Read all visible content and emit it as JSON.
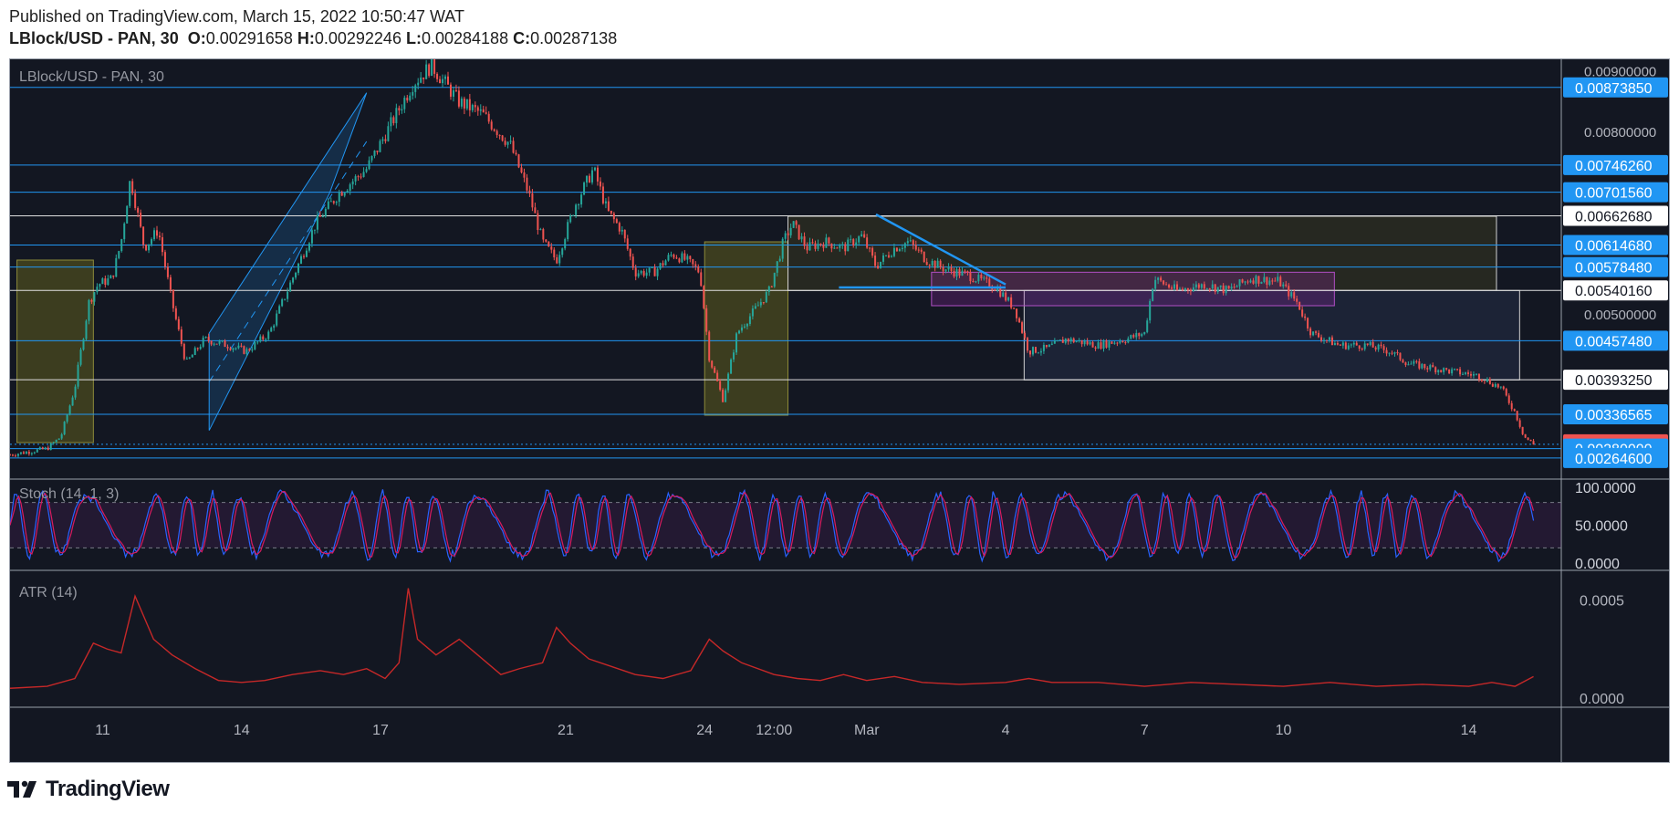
{
  "header": {
    "published": "Published on TradingView.com, March 15, 2022 10:50:47 WAT",
    "symbol": "LBlock/USD - PAN, 30",
    "o_label": "O:",
    "o_value": "0.00291658",
    "h_label": "H:",
    "h_value": "0.00292246",
    "l_label": "L:",
    "l_value": "0.00284188",
    "c_label": "C:",
    "c_value": "0.00287138"
  },
  "footer": {
    "brand": "TradingView"
  },
  "colors": {
    "background": "#131722",
    "up": "#26a69a",
    "down": "#ef5350",
    "hline": "#2196f3",
    "price_tag": "#2196f3",
    "last_price_tag": "#ef5350",
    "stoch_k": "#2962ff",
    "stoch_d": "#d81b60",
    "atr": "#c62828",
    "zone_yellow": "#5f5d1e",
    "zone_purple": "#9c27b0",
    "zone_navy": "#1e2538"
  },
  "chart_data": [
    {
      "type": "candlestick",
      "title": "LBlock/USD - PAN, 30",
      "ylim": [
        0.0023,
        0.0092
      ],
      "x_tick_labels": [
        "11",
        "14",
        "17",
        "21",
        "24",
        "12:00",
        "Mar",
        "4",
        "7",
        "10",
        "14"
      ],
      "x_tick_times": [
        1.5,
        4.5,
        7.5,
        11.5,
        14.5,
        16,
        18,
        21,
        24,
        27,
        31
      ],
      "x_range": [
        -0.5,
        33
      ],
      "y_tick_labels": [
        "0.00900000",
        "0.00800000",
        "0.00500000"
      ],
      "path": [
        [
          -0.5,
          0.0027
        ],
        [
          0.3,
          0.0028
        ],
        [
          0.6,
          0.003
        ],
        [
          0.9,
          0.0038
        ],
        [
          1.2,
          0.0052
        ],
        [
          1.4,
          0.0055
        ],
        [
          1.7,
          0.0056
        ],
        [
          1.9,
          0.0062
        ],
        [
          2.1,
          0.00725
        ],
        [
          2.4,
          0.0061
        ],
        [
          2.7,
          0.0064
        ],
        [
          3.0,
          0.0052
        ],
        [
          3.3,
          0.0042
        ],
        [
          3.7,
          0.0046
        ],
        [
          4.2,
          0.0045
        ],
        [
          4.6,
          0.0044
        ],
        [
          5.1,
          0.0047
        ],
        [
          5.6,
          0.0056
        ],
        [
          6.1,
          0.0065
        ],
        [
          6.6,
          0.007
        ],
        [
          7.2,
          0.0074
        ],
        [
          7.7,
          0.0081
        ],
        [
          8.2,
          0.0088
        ],
        [
          8.6,
          0.0091
        ],
        [
          9.2,
          0.0085
        ],
        [
          9.7,
          0.0083
        ],
        [
          10.3,
          0.0078
        ],
        [
          10.7,
          0.007
        ],
        [
          11.0,
          0.0062
        ],
        [
          11.3,
          0.0059
        ],
        [
          11.7,
          0.0068
        ],
        [
          12.1,
          0.0074
        ],
        [
          12.4,
          0.0067
        ],
        [
          12.7,
          0.0064
        ],
        [
          13.0,
          0.0057
        ],
        [
          13.4,
          0.0057
        ],
        [
          13.8,
          0.006
        ],
        [
          14.1,
          0.0059
        ],
        [
          14.4,
          0.0057
        ],
        [
          14.6,
          0.0043
        ],
        [
          14.9,
          0.0036
        ],
        [
          15.2,
          0.0047
        ],
        [
          15.6,
          0.0051
        ],
        [
          15.9,
          0.0054
        ],
        [
          16.2,
          0.0062
        ],
        [
          16.4,
          0.0065
        ],
        [
          16.7,
          0.0061
        ],
        [
          17.1,
          0.0062
        ],
        [
          17.5,
          0.0061
        ],
        [
          17.9,
          0.0063
        ],
        [
          18.2,
          0.0058
        ],
        [
          18.6,
          0.0061
        ],
        [
          18.9,
          0.0062
        ],
        [
          19.3,
          0.0059
        ],
        [
          19.7,
          0.00575
        ],
        [
          20.2,
          0.00565
        ],
        [
          20.8,
          0.00545
        ],
        [
          21.2,
          0.0051
        ],
        [
          21.5,
          0.0044
        ],
        [
          21.9,
          0.00445
        ],
        [
          22.3,
          0.0046
        ],
        [
          23.0,
          0.0045
        ],
        [
          23.6,
          0.0046
        ],
        [
          24.0,
          0.0047
        ],
        [
          24.2,
          0.0056
        ],
        [
          24.7,
          0.0054
        ],
        [
          25.3,
          0.0055
        ],
        [
          25.8,
          0.0054
        ],
        [
          26.3,
          0.0056
        ],
        [
          26.9,
          0.00555
        ],
        [
          27.3,
          0.0052
        ],
        [
          27.6,
          0.0047
        ],
        [
          28.2,
          0.0045
        ],
        [
          28.8,
          0.0045
        ],
        [
          29.3,
          0.0044
        ],
        [
          29.7,
          0.0042
        ],
        [
          30.4,
          0.0041
        ],
        [
          31.2,
          0.004
        ],
        [
          31.7,
          0.0038
        ],
        [
          32.0,
          0.0034
        ],
        [
          32.2,
          0.003
        ],
        [
          32.4,
          0.00287
        ]
      ],
      "price_levels": [
        {
          "value": 0.0087385,
          "label": "0.00873850",
          "color": "#2196f3"
        },
        {
          "value": 0.0074626,
          "label": "0.00746260",
          "color": "#2196f3"
        },
        {
          "value": 0.0070156,
          "label": "0.00701560",
          "color": "#2196f3"
        },
        {
          "value": 0.0066268,
          "label": "0.00662680",
          "color": "#ffffff"
        },
        {
          "value": 0.0061468,
          "label": "0.00614680",
          "color": "#2196f3"
        },
        {
          "value": 0.0057848,
          "label": "0.00578480",
          "color": "#2196f3"
        },
        {
          "value": 0.0054016,
          "label": "0.00540160",
          "color": "#ffffff"
        },
        {
          "value": 0.0045748,
          "label": "0.00457480",
          "color": "#2196f3"
        },
        {
          "value": 0.0039325,
          "label": "0.00393250",
          "color": "#ffffff"
        },
        {
          "value": 0.00336565,
          "label": "0.00336565",
          "color": "#2196f3"
        },
        {
          "value": 0.00287138,
          "label": "0.00287138",
          "color": "#ef5350"
        },
        {
          "value": 0.0028,
          "label": "0.00280000",
          "color": "#2196f3"
        },
        {
          "value": 0.002646,
          "label": "0.00264600",
          "color": "#2196f3"
        }
      ]
    },
    {
      "type": "line",
      "title": "Stoch (14, 1, 3)",
      "ylim": [
        0,
        100
      ],
      "y_tick_labels": [
        "100.0000",
        "50.0000",
        "0.0000"
      ],
      "bands": [
        20,
        80
      ],
      "series": [
        {
          "color": "#2962ff"
        },
        {
          "color": "#d81b60"
        }
      ]
    },
    {
      "type": "line",
      "title": "ATR (14)",
      "ylim": [
        0,
        0.0006
      ],
      "y_tick_labels": [
        "0.0005",
        "0.0000"
      ],
      "x": [
        -0.5,
        0.3,
        0.9,
        1.3,
        1.6,
        1.9,
        2.2,
        2.6,
        3.0,
        3.5,
        4.0,
        4.5,
        5.0,
        5.6,
        6.2,
        6.7,
        7.2,
        7.6,
        7.9,
        8.1,
        8.3,
        8.7,
        9.2,
        9.6,
        10.1,
        10.5,
        11.0,
        11.3,
        11.6,
        12.0,
        12.5,
        13.0,
        13.6,
        14.2,
        14.6,
        14.9,
        15.3,
        16.0,
        16.5,
        17.0,
        17.5,
        18.0,
        18.6,
        19.2,
        20.0,
        21.0,
        21.5,
        22.0,
        23.0,
        24.0,
        25.0,
        26.0,
        27.0,
        28.0,
        29.0,
        30.0,
        31.0,
        31.5,
        32.0,
        32.4
      ],
      "y": [
        5e-05,
        6e-05,
        0.0001,
        0.00028,
        0.00025,
        0.00023,
        0.00052,
        0.0003,
        0.00022,
        0.00015,
        9e-05,
        8e-05,
        9e-05,
        0.00012,
        0.00014,
        0.00012,
        0.00015,
        0.0001,
        0.00018,
        0.00056,
        0.0003,
        0.00022,
        0.0003,
        0.00022,
        0.00012,
        0.00015,
        0.00018,
        0.00036,
        0.00028,
        0.0002,
        0.00016,
        0.00012,
        0.0001,
        0.00014,
        0.0003,
        0.00024,
        0.00018,
        0.00012,
        0.0001,
        9e-05,
        0.00012,
        9e-05,
        0.00011,
        8e-05,
        7e-05,
        8e-05,
        0.0001,
        8e-05,
        8e-05,
        6e-05,
        8e-05,
        7e-05,
        6e-05,
        8e-05,
        6e-05,
        7e-05,
        6e-05,
        8e-05,
        6e-05,
        0.00011
      ]
    }
  ]
}
